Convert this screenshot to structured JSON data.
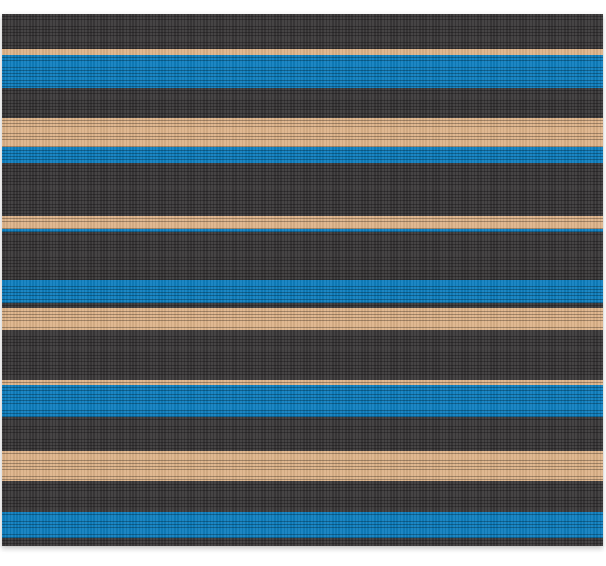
{
  "image": {
    "subject": "striped-rug",
    "colors": {
      "charcoal": "#3a3839",
      "tan": "#deb48a",
      "blue": "#0f7fbf"
    },
    "stripe_sequence": [
      "charcoal",
      "tan",
      "blue",
      "charcoal",
      "tan",
      "blue",
      "charcoal",
      "tan",
      "blue",
      "charcoal",
      "blue",
      "charcoal",
      "tan",
      "charcoal",
      "tan",
      "blue",
      "charcoal",
      "tan",
      "charcoal",
      "blue",
      "charcoal"
    ]
  }
}
